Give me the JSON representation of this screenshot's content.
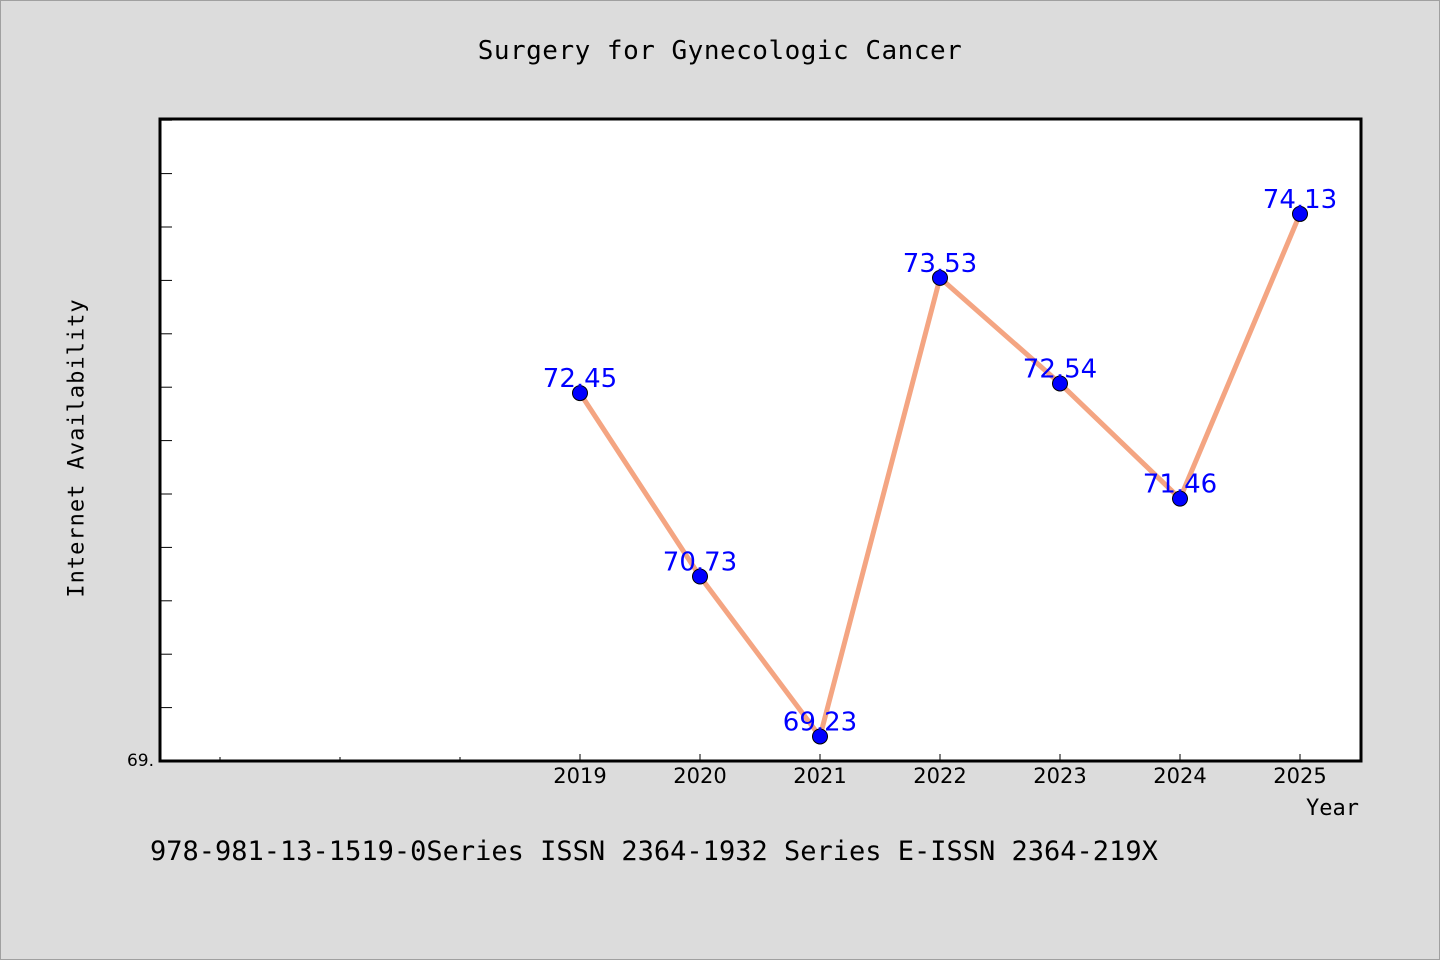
{
  "colors": {
    "background": "#dcdcdc",
    "plot_background": "#ffffff",
    "line": "#f4a582",
    "marker": "#0000ff",
    "data_label": "#0000ff"
  },
  "footer_text": "978-981-13-1519-0Series ISSN 2364-1932 Series E-ISSN 2364-219X",
  "chart_data": {
    "type": "line",
    "title": "Surgery for Gynecologic Cancer",
    "xlabel": "Year",
    "ylabel": "Internet Availability",
    "x": [
      "2019",
      "2020",
      "2021",
      "2022",
      "2023",
      "2024",
      "2025"
    ],
    "series": [
      {
        "values": [
          72.45,
          70.73,
          69.23,
          73.53,
          72.54,
          71.46,
          74.13
        ],
        "labels": [
          "72.45",
          "70.73",
          "69.23",
          "73.53",
          "72.54",
          "71.46",
          "74.13"
        ]
      }
    ],
    "y_min_label": "69.",
    "ylim": [
      69.0,
      75.02
    ],
    "grid": false,
    "legend": "none"
  }
}
